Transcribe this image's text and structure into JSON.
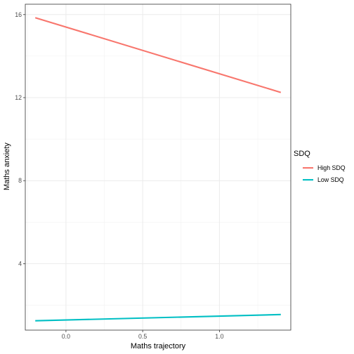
{
  "chart_data": {
    "type": "line",
    "xlabel": "Maths trajectory",
    "ylabel": "Maths anxiety",
    "xlim": [
      -0.265,
      1.465
    ],
    "ylim": [
      0.8,
      16.5
    ],
    "x_ticks": [
      0.0,
      0.5,
      1.0
    ],
    "x_tick_labels": [
      "0.0",
      "0.5",
      "1.0"
    ],
    "y_ticks": [
      4,
      8,
      12,
      16
    ],
    "y_tick_labels": [
      "4",
      "8",
      "12",
      "16"
    ],
    "grid": true,
    "legend": {
      "title": "SDQ",
      "position": "right"
    },
    "series": [
      {
        "name": "High SDQ",
        "color": "#F8766D",
        "x": [
          -0.2,
          1.4
        ],
        "y": [
          15.85,
          12.25
        ]
      },
      {
        "name": "Low SDQ",
        "color": "#00BFC4",
        "x": [
          -0.2,
          1.4
        ],
        "y": [
          1.25,
          1.55
        ]
      }
    ]
  }
}
